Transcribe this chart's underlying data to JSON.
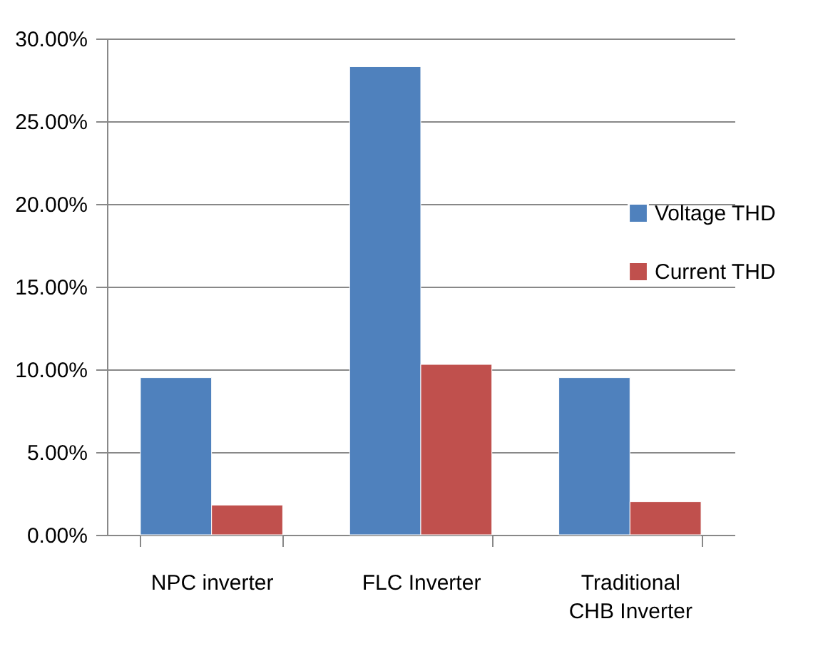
{
  "chart_data": {
    "type": "bar",
    "categories": [
      "NPC inverter",
      "FLC Inverter",
      "Traditional CHB Inverter"
    ],
    "series": [
      {
        "name": "Voltage THD",
        "color": "#4f81bd",
        "values": [
          9.5,
          28.3,
          9.5
        ]
      },
      {
        "name": "Current THD",
        "color": "#c0504d",
        "values": [
          1.8,
          10.3,
          2.0
        ]
      }
    ],
    "ylim": [
      0,
      30
    ],
    "yticks": [
      {
        "value": 0,
        "label": "0.00%"
      },
      {
        "value": 5,
        "label": "5.00%"
      },
      {
        "value": 10,
        "label": "10.00%"
      },
      {
        "value": 15,
        "label": "15.00%"
      },
      {
        "value": 20,
        "label": "20.00%"
      },
      {
        "value": 25,
        "label": "25.00%"
      },
      {
        "value": 30,
        "label": "30.00%"
      }
    ],
    "grid": "y",
    "legend": "right"
  }
}
